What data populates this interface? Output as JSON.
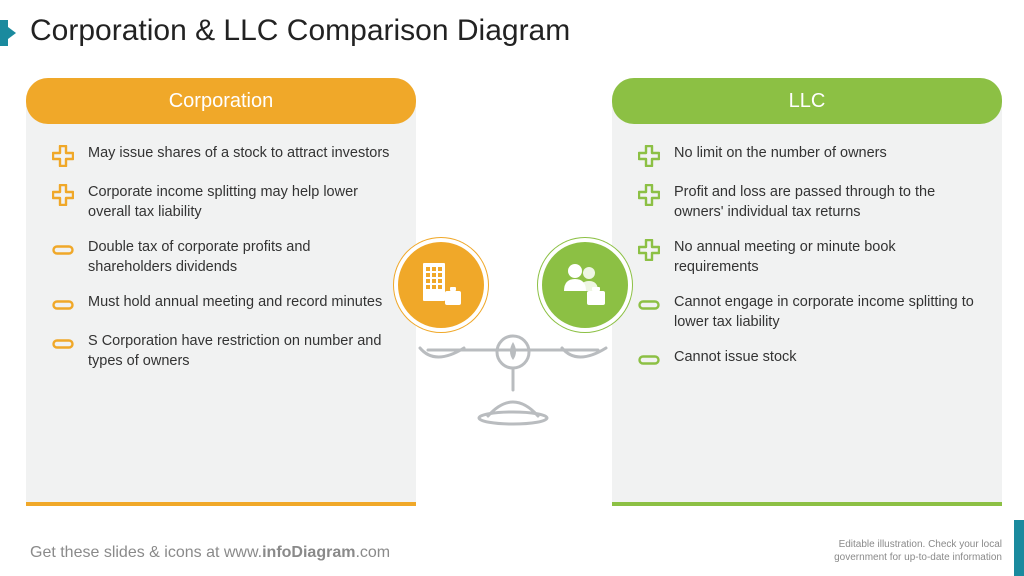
{
  "title": "Corporation & LLC Comparison Diagram",
  "colors": {
    "accent_teal": "#1a8a9e",
    "panel_bg": "#f1f2f2",
    "corp": "#f0a829",
    "llc": "#8cc044",
    "text": "#333333",
    "footer_text": "#8a8a8a"
  },
  "left_panel": {
    "header": "Corporation",
    "items": [
      {
        "icon": "plus",
        "text": "May issue shares of a stock to attract investors"
      },
      {
        "icon": "plus",
        "text": "Corporate income splitting may help lower overall tax liability"
      },
      {
        "icon": "minus",
        "text": "Double tax of corporate profits and shareholders dividends"
      },
      {
        "icon": "minus",
        "text": "Must hold annual meeting and record minutes"
      },
      {
        "icon": "minus",
        "text": "S Corporation have restriction on number and types of owners"
      }
    ]
  },
  "right_panel": {
    "header": "LLC",
    "items": [
      {
        "icon": "plus",
        "text": "No limit on the number of owners"
      },
      {
        "icon": "plus",
        "text": "Profit and loss are passed through to the owners' individual tax returns"
      },
      {
        "icon": "plus",
        "text": "No annual meeting or minute book requirements"
      },
      {
        "icon": "minus",
        "text": "Cannot engage in corporate income splitting to lower tax liability"
      },
      {
        "icon": "minus",
        "text": "Cannot issue stock"
      }
    ]
  },
  "center": {
    "left_badge": "building-briefcase",
    "right_badge": "people-briefcase"
  },
  "footer_left_prefix": "Get these slides & icons at ",
  "footer_left_domain_a": "www.",
  "footer_left_domain_b": "infoDiagram",
  "footer_left_domain_c": ".com",
  "footer_right_line1": "Editable illustration. Check your local",
  "footer_right_line2": "government for up-to-date information"
}
